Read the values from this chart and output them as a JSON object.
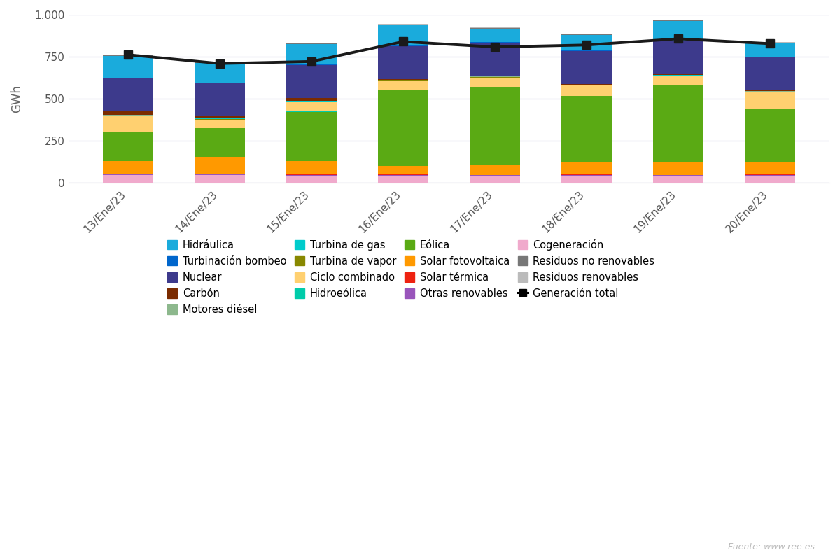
{
  "dates": [
    "13/Ene/23",
    "14/Ene/23",
    "15/Ene/23",
    "16/Ene/23",
    "17/Ene/23",
    "18/Ene/23",
    "19/Ene/23",
    "20/Ene/23"
  ],
  "stack_order": [
    "Cogeneración",
    "Otras renovables",
    "Solar térmica",
    "Solar fotovoltaica",
    "Eólica",
    "Hidroeólica",
    "Ciclo combinado",
    "Turbina de vapor",
    "Turbina de gas",
    "Motores diésel",
    "Carbón",
    "Nuclear",
    "Turbinación bombeo",
    "Hidráulica",
    "Residuos no renovables",
    "Residuos renovables"
  ],
  "legend_order": [
    "Hidráulica",
    "Turbinación bombeo",
    "Nuclear",
    "Carbón",
    "Motores diésel",
    "Turbina de gas",
    "Turbina de vapor",
    "Ciclo combinado",
    "Hidroeólica",
    "Eólica",
    "Solar fotovoltaica",
    "Solar térmica",
    "Otras renovables",
    "Cogeneración",
    "Residuos no renovables",
    "Residuos renovables"
  ],
  "colors": {
    "Hidráulica": "#1AABDC",
    "Turbinación bombeo": "#0066CC",
    "Nuclear": "#3D3A8C",
    "Carbón": "#7B2B00",
    "Motores diésel": "#8DB88D",
    "Turbina de gas": "#00CCCC",
    "Turbina de vapor": "#888800",
    "Ciclo combinado": "#FFD070",
    "Hidroeólica": "#00CCAA",
    "Eólica": "#5AAA14",
    "Solar fotovoltaica": "#FF9900",
    "Solar térmica": "#EE2211",
    "Otras renovables": "#9955BB",
    "Cogeneración": "#F0AACC",
    "Residuos no renovables": "#777777",
    "Residuos renovables": "#BBBBBB"
  },
  "values": {
    "Cogeneración": [
      48,
      47,
      42,
      42,
      40,
      42,
      40,
      42
    ],
    "Otras renovables": [
      8,
      7,
      7,
      6,
      6,
      7,
      6,
      7
    ],
    "Solar térmica": [
      2,
      2,
      2,
      2,
      2,
      2,
      2,
      2
    ],
    "Solar fotovoltaica": [
      72,
      100,
      78,
      50,
      60,
      75,
      75,
      70
    ],
    "Eólica": [
      170,
      170,
      295,
      455,
      460,
      390,
      455,
      320
    ],
    "Hidroeólica": [
      2,
      2,
      2,
      2,
      2,
      2,
      2,
      2
    ],
    "Ciclo combinado": [
      95,
      50,
      55,
      50,
      55,
      60,
      55,
      95
    ],
    "Turbina de vapor": [
      4,
      4,
      4,
      4,
      4,
      4,
      4,
      4
    ],
    "Turbina de gas": [
      2,
      2,
      2,
      2,
      2,
      2,
      2,
      2
    ],
    "Motores diésel": [
      2,
      2,
      2,
      2,
      2,
      2,
      2,
      2
    ],
    "Carbón": [
      20,
      12,
      15,
      4,
      4,
      4,
      4,
      4
    ],
    "Nuclear": [
      195,
      195,
      195,
      195,
      195,
      195,
      195,
      195
    ],
    "Turbinación bombeo": [
      5,
      5,
      5,
      5,
      5,
      5,
      5,
      5
    ],
    "Hidráulica": [
      130,
      115,
      120,
      120,
      80,
      90,
      115,
      80
    ],
    "Residuos no renovables": [
      4,
      4,
      4,
      4,
      4,
      4,
      4,
      4
    ],
    "Residuos renovables": [
      4,
      4,
      4,
      4,
      4,
      4,
      4,
      4
    ]
  },
  "total_line": [
    762,
    710,
    722,
    840,
    808,
    820,
    857,
    828
  ],
  "ylim": [
    0,
    1000
  ],
  "yticks": [
    0,
    250,
    500,
    750,
    1000
  ],
  "ylabel": "GWh",
  "fig_bg": "#ffffff",
  "plot_bg": "#ffffff",
  "grid_color": "#ddddee",
  "source_text": "Fuente: www.ree.es",
  "bar_width": 0.55
}
